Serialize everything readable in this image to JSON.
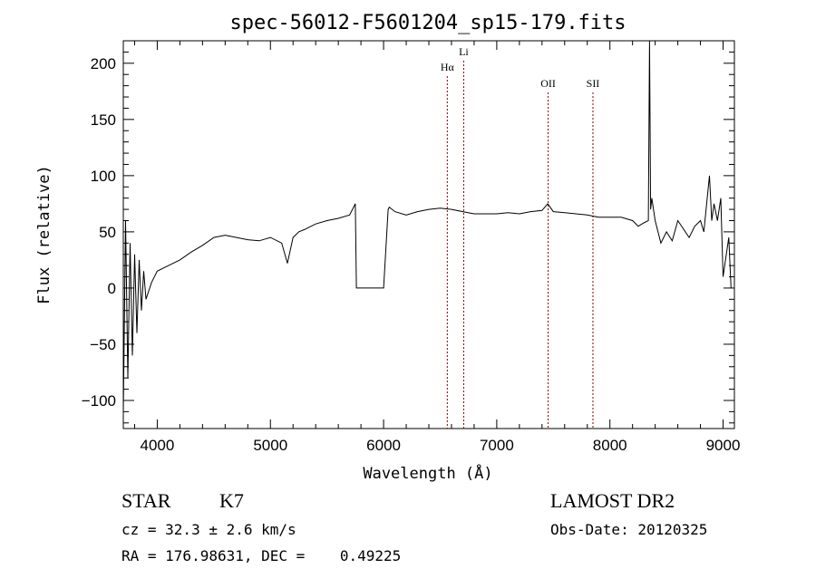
{
  "chart_data": {
    "type": "line",
    "title": "spec-56012-F5601204_sp15-179.fits",
    "xlabel": "Wavelength (Å)",
    "ylabel": "Flux (relative)",
    "xlim": [
      3700,
      9100
    ],
    "ylim": [
      -125,
      220
    ],
    "x_ticks": [
      4000,
      5000,
      6000,
      7000,
      8000,
      9000
    ],
    "y_ticks": [
      -100,
      -50,
      0,
      50,
      100,
      150,
      200
    ],
    "grid": false,
    "line_color": "#000000",
    "marker_color": "#8b0000",
    "spectral_lines": [
      {
        "label": "Hα",
        "x": 6563
      },
      {
        "label": "Li",
        "x": 6708
      },
      {
        "label": "OII",
        "x": 7454
      },
      {
        "label": "SII",
        "x": 7850
      }
    ],
    "series": [
      {
        "x": [
          3700,
          3720,
          3740,
          3760,
          3780,
          3800,
          3820,
          3840,
          3860,
          3880,
          3900,
          3950,
          4000,
          4100,
          4200,
          4300,
          4400,
          4500,
          4600,
          4700,
          4800,
          4900,
          5000,
          5100,
          5150,
          5200,
          5250,
          5300,
          5400,
          5500,
          5600,
          5700,
          5750,
          5760,
          5800,
          5900,
          6000,
          6040,
          6050,
          6100,
          6200,
          6300,
          6400,
          6500,
          6600,
          6700,
          6800,
          6900,
          7000,
          7100,
          7200,
          7300,
          7400,
          7450,
          7500,
          7600,
          7700,
          7800,
          7900,
          8000,
          8100,
          8200,
          8250,
          8300,
          8340,
          8350,
          8360,
          8370,
          8400,
          8450,
          8500,
          8550,
          8600,
          8700,
          8750,
          8800,
          8830,
          8860,
          8880,
          8900,
          8920,
          8950,
          8980,
          9000,
          9050,
          9070
        ],
        "y": [
          -110,
          60,
          -80,
          40,
          -60,
          30,
          -40,
          25,
          -20,
          15,
          -10,
          5,
          15,
          20,
          25,
          32,
          38,
          45,
          47,
          45,
          43,
          42,
          45,
          40,
          22,
          45,
          50,
          52,
          57,
          60,
          62,
          65,
          75,
          0,
          0,
          0,
          0,
          70,
          72,
          68,
          65,
          68,
          70,
          71,
          70,
          68,
          66,
          66,
          66,
          67,
          66,
          68,
          69,
          75,
          68,
          67,
          66,
          65,
          63,
          63,
          63,
          60,
          55,
          58,
          60,
          220,
          70,
          80,
          60,
          40,
          50,
          42,
          60,
          45,
          55,
          60,
          50,
          80,
          100,
          60,
          75,
          60,
          80,
          10,
          45,
          0
        ]
      }
    ]
  },
  "info": {
    "object_class": "STAR",
    "subclass": "K7",
    "survey": "LAMOST DR2",
    "cz_line": "cz = 32.3 ± 2.6 km/s",
    "obs_date": "Obs-Date: 20120325",
    "radec_line": "RA = 176.98631, DEC =    0.49225"
  }
}
